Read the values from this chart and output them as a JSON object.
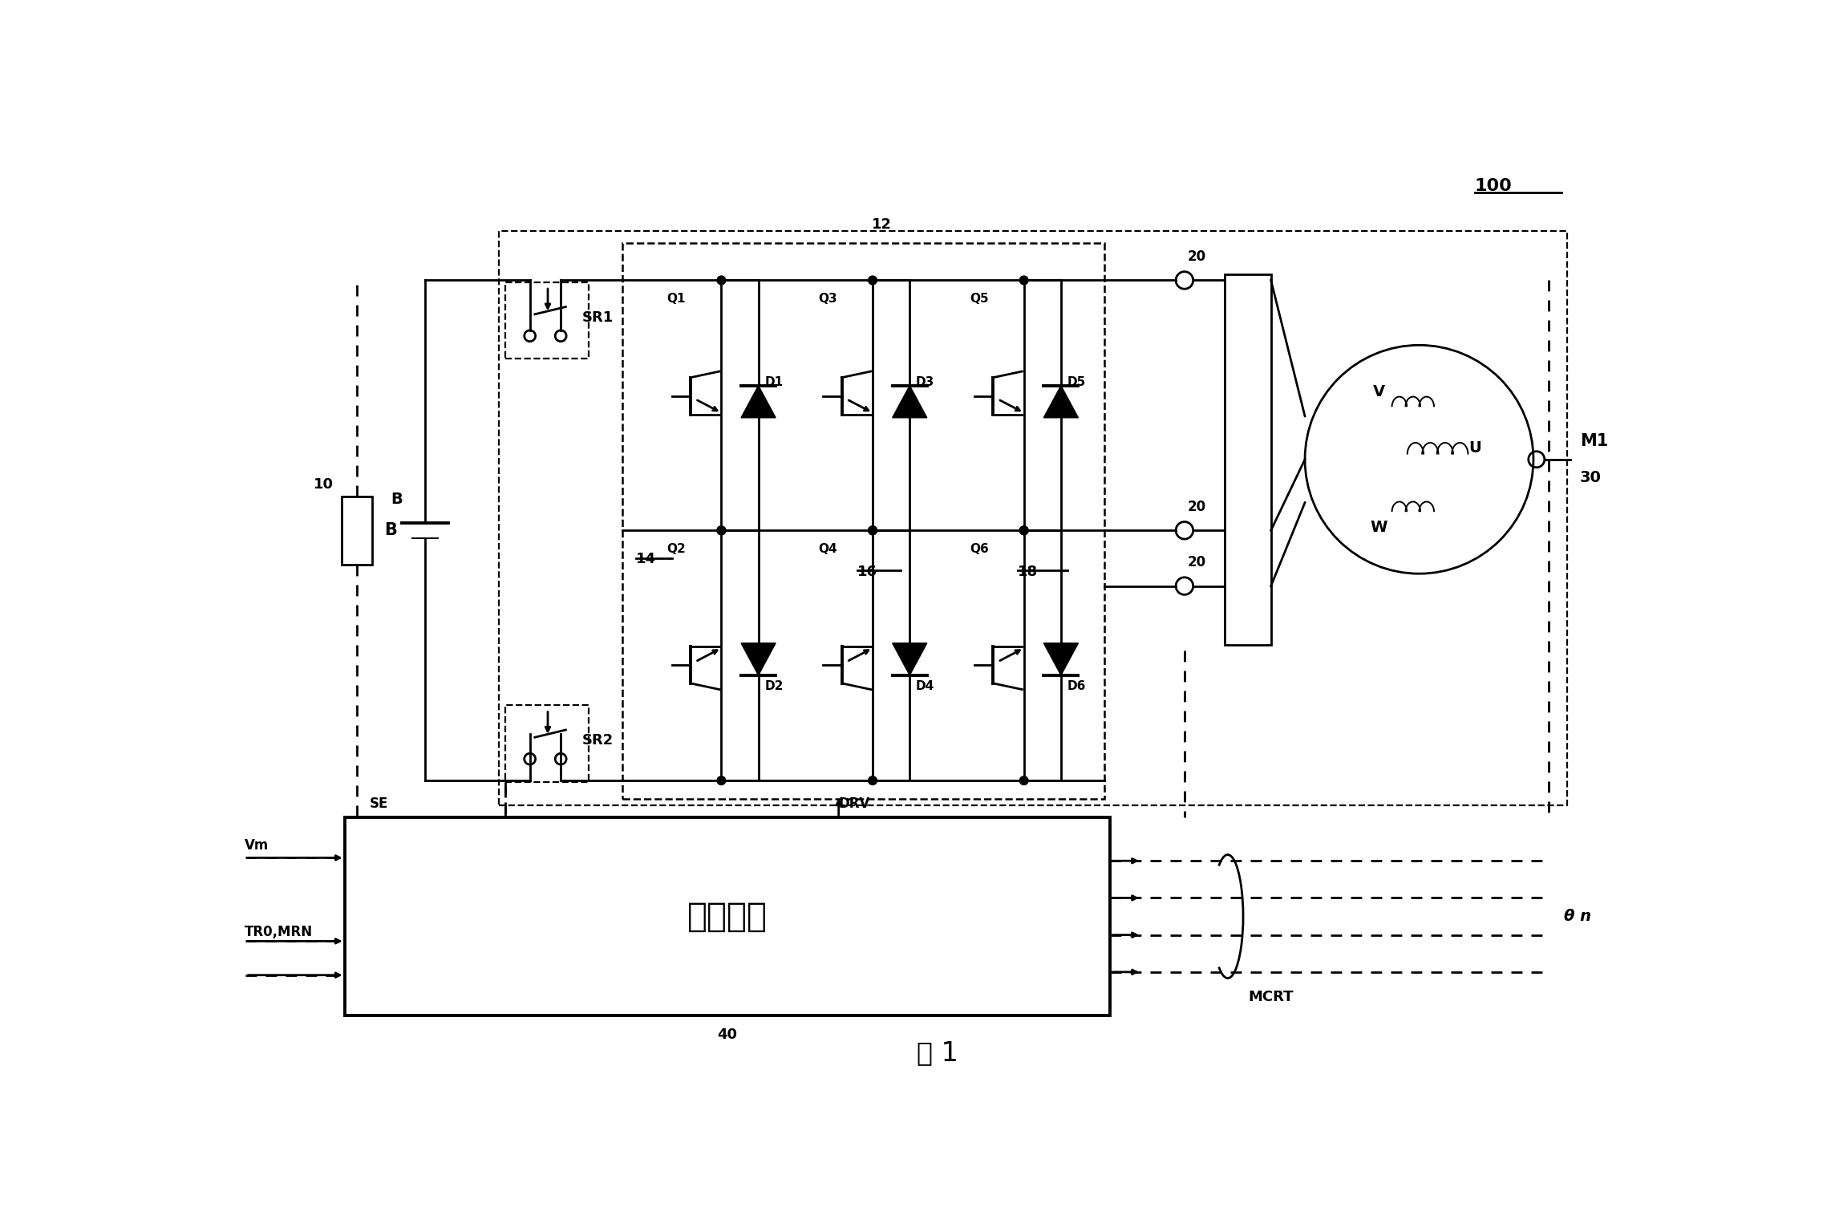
{
  "title": "图 1",
  "fig_number": "100",
  "bg": "#ffffff",
  "lc": "#000000",
  "labels": {
    "B": "B",
    "bat_id": "10",
    "SR1": "SR1",
    "SR2": "SR2",
    "Q1": "Q1",
    "D1": "D1",
    "Q2": "Q2",
    "D2": "D2",
    "Q3": "Q3",
    "D3": "D3",
    "Q4": "Q4",
    "D4": "D4",
    "Q5": "Q5",
    "D5": "D5",
    "Q6": "Q6",
    "D6": "D6",
    "n14": "14",
    "n16": "16",
    "n18": "18",
    "inv": "12",
    "M1": "M1",
    "term30": "30",
    "cs20": "20",
    "ctrl": "控制装置",
    "ctrl40": "40",
    "vm": "Vm",
    "tr0": "TR0,MRN",
    "se": "SE",
    "drv": "DRV",
    "mcrt": "MCRT",
    "theta": "θ n"
  }
}
